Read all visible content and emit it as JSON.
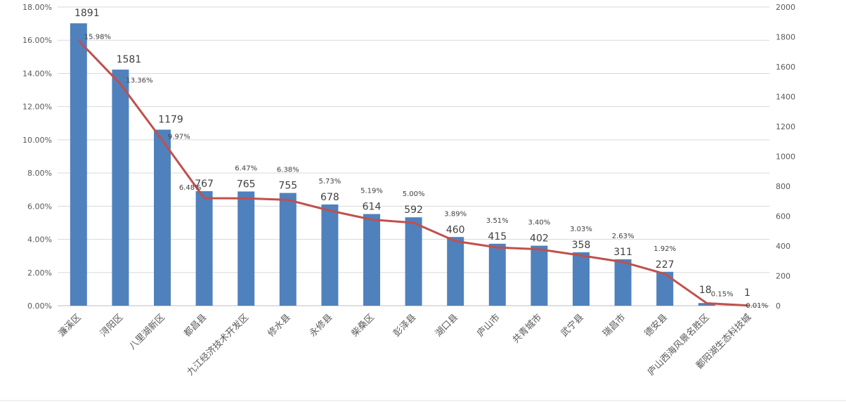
{
  "chart_data": {
    "type": "bar+line",
    "title": "",
    "categories": [
      "濂溪区",
      "浔阳区",
      "八里湖新区",
      "都昌县",
      "九江经济技术开发区",
      "修水县",
      "永修县",
      "柴桑区",
      "彭泽县",
      "湖口县",
      "庐山市",
      "共青城市",
      "武宁县",
      "瑞昌市",
      "德安县",
      "庐山西海风景名胜区",
      "鄱阳湖生态科技城"
    ],
    "series": [
      {
        "name": "count",
        "type": "bar",
        "axis": "right",
        "color": "#4F81BD",
        "values": [
          1891,
          1581,
          1179,
          767,
          765,
          755,
          678,
          614,
          592,
          460,
          415,
          402,
          358,
          311,
          227,
          18,
          1
        ],
        "labels": [
          "1891",
          "1581",
          "1179",
          "767",
          "765",
          "755",
          "678",
          "614",
          "592",
          "460",
          "415",
          "402",
          "358",
          "311",
          "227",
          "18",
          "1"
        ]
      },
      {
        "name": "share",
        "type": "line",
        "axis": "left",
        "color": "#C0504D",
        "values": [
          15.98,
          13.36,
          9.97,
          6.48,
          6.47,
          6.38,
          5.73,
          5.19,
          5.0,
          3.89,
          3.51,
          3.4,
          3.03,
          2.63,
          1.92,
          0.15,
          0.01
        ],
        "labels": [
          "15.98%",
          "13.36%",
          "9.97%",
          "6.48%",
          "6.47%",
          "6.38%",
          "5.73%",
          "5.19%",
          "5.00%",
          "3.89%",
          "3.51%",
          "3.40%",
          "3.03%",
          "2.63%",
          "1.92%",
          "0.15%",
          "0.01%"
        ]
      }
    ],
    "left_axis": {
      "range": [
        0,
        18
      ],
      "ticks": [
        "0.00%",
        "2.00%",
        "4.00%",
        "6.00%",
        "8.00%",
        "10.00%",
        "12.00%",
        "14.00%",
        "16.00%",
        "18.00%"
      ]
    },
    "right_axis": {
      "range": [
        0,
        2000
      ],
      "ticks": [
        "0",
        "200",
        "400",
        "600",
        "800",
        "1000",
        "1200",
        "1400",
        "1600",
        "1800",
        "2000"
      ]
    },
    "grid": true,
    "legend": "none"
  }
}
